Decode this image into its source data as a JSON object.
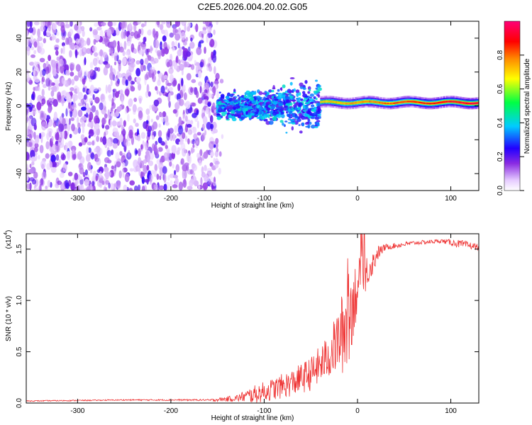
{
  "title": "C2E5.2026.004.20.02.G05",
  "chart_data": [
    {
      "type": "heatmap",
      "xlabel": "Height of straight line (km)",
      "ylabel": "Frequency (Hz)",
      "xlim": [
        -355,
        130
      ],
      "ylim": [
        -50,
        50
      ],
      "xticks": [
        -300,
        -200,
        -100,
        0,
        100
      ],
      "xtick_labels": [
        "-300",
        "-200",
        "-100",
        "0",
        "100"
      ],
      "yticks": [
        -40,
        -20,
        0,
        20,
        40
      ],
      "ytick_labels": [
        "-40",
        "-20",
        "0",
        "20",
        "40"
      ],
      "colorbar": {
        "label": "Normalized spectral amplitude",
        "range": [
          0,
          1
        ],
        "ticks": [
          0.0,
          0.2,
          0.4,
          0.6,
          0.8
        ],
        "tick_labels": [
          "0.0",
          "0.2",
          "0.4",
          "0.6",
          "0.8"
        ],
        "colors": [
          "#ffffff",
          "#e6ccff",
          "#8a2be2",
          "#2200ff",
          "#00ccff",
          "#00ff44",
          "#ffff00",
          "#ff8800",
          "#ff0000",
          "#ff0077"
        ]
      },
      "regions": [
        {
          "name": "scattered noise",
          "x_range": [
            -355,
            -150
          ],
          "y_range": [
            -50,
            50
          ],
          "level": 0.15
        },
        {
          "name": "broad band",
          "x_range": [
            -150,
            -40
          ],
          "y_center": 0,
          "width_hz": 14,
          "level": 0.35
        },
        {
          "name": "narrow band",
          "x_range": [
            -40,
            130
          ],
          "y_center": 2,
          "width_hz": 5,
          "level": 0.9
        }
      ]
    },
    {
      "type": "line",
      "xlabel": "Height of straight line (km)",
      "ylabel": "SNR (10 * v/v)",
      "scale_label": "(x10",
      "scale_exp": "4",
      "scale_close": ")",
      "xlim": [
        -355,
        130
      ],
      "ylim": [
        0,
        1.65
      ],
      "xticks": [
        -300,
        -200,
        -100,
        0,
        100
      ],
      "xtick_labels": [
        "-300",
        "-200",
        "-100",
        "0",
        "100"
      ],
      "yticks": [
        0.0,
        0.5,
        1.0,
        1.5
      ],
      "ytick_labels": [
        "0.0",
        "0.5",
        "1.0",
        "1.5"
      ],
      "color": "#ee3333",
      "profile": {
        "x": [
          -355,
          -250,
          -160,
          -130,
          -110,
          -90,
          -70,
          -50,
          -30,
          -20,
          -12,
          0,
          10,
          20,
          30,
          60,
          90,
          110,
          130
        ],
        "y": [
          0.02,
          0.03,
          0.03,
          0.06,
          0.12,
          0.18,
          0.25,
          0.35,
          0.55,
          0.75,
          0.95,
          1.25,
          1.35,
          1.45,
          1.52,
          1.56,
          1.58,
          1.55,
          1.52
        ],
        "noise": [
          0.005,
          0.006,
          0.008,
          0.03,
          0.08,
          0.1,
          0.12,
          0.15,
          0.2,
          0.3,
          0.45,
          0.25,
          0.15,
          0.08,
          0.03,
          0.02,
          0.02,
          0.04,
          0.03
        ]
      }
    }
  ]
}
